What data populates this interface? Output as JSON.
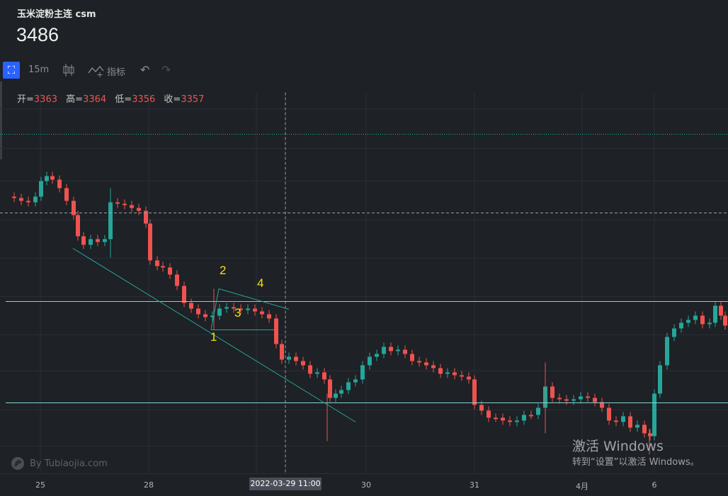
{
  "header": {
    "title": "玉米淀粉主连 csm",
    "price": "3486"
  },
  "toolbar": {
    "crop_icon": "crop-icon",
    "interval": "15m",
    "indicators_label": "指标"
  },
  "ohlc": {
    "open_label": "开=",
    "open": "3363",
    "high_label": "高=",
    "high": "3364",
    "low_label": "低=",
    "low": "3356",
    "close_label": "收=",
    "close": "3357"
  },
  "xaxis": {
    "ticks": [
      "25",
      "28",
      "30",
      "31",
      "4月",
      "6"
    ],
    "crosshair_label": "2022-03-29   11:00"
  },
  "annotations": [
    "1",
    "2",
    "3",
    "4"
  ],
  "watermark": "By Tubiaojia.com",
  "windows_activation": {
    "line1": "激活 Windows",
    "line2": "转到“设置”以激活 Windows。"
  },
  "colors": {
    "up": "#26a69a",
    "down": "#ef5350",
    "background": "#1e2125",
    "accent": "#2962ff",
    "annotation": "#f5e20b"
  }
}
